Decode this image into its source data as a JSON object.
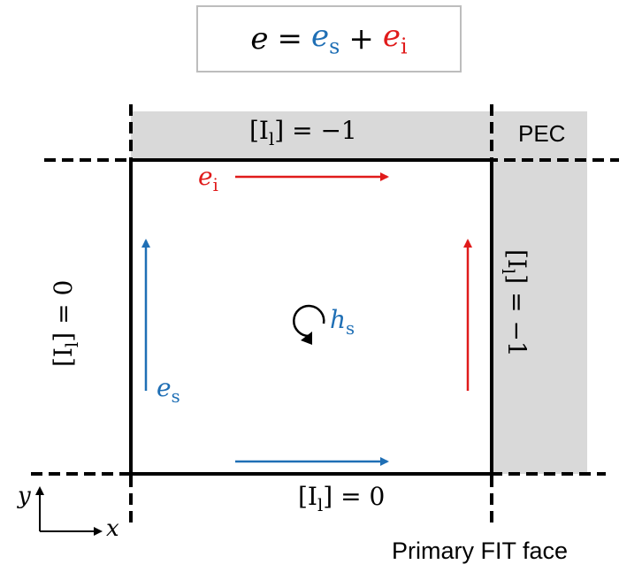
{
  "formula": {
    "lhs": "e",
    "eq": "=",
    "term1_base": "e",
    "term1_sub": "s",
    "plus": "+",
    "term2_base": "e",
    "term2_sub": "i"
  },
  "labels": {
    "top_bc": "[I",
    "top_bc_sub": "l",
    "top_bc_val": "] = −1",
    "bottom_bc": "[I",
    "bottom_bc_sub": "l",
    "bottom_bc_val": "] = 0",
    "left_bc": "[I",
    "left_bc_sub": "l",
    "left_bc_val": "] = 0",
    "right_bc": "[I",
    "right_bc_sub": "l",
    "right_bc_val": "] = −1",
    "pec": "PEC",
    "e_i_base": "e",
    "e_i_sub": "i",
    "e_s_base": "e",
    "e_s_sub": "s",
    "h_s_base": "h",
    "h_s_sub": "s",
    "axis_y": "y",
    "axis_x": "x",
    "caption": "Primary FIT face"
  },
  "colors": {
    "blue": "#1f6fb5",
    "red": "#e01b1b",
    "pec_fill": "#d9d9d9",
    "black": "#000000"
  }
}
